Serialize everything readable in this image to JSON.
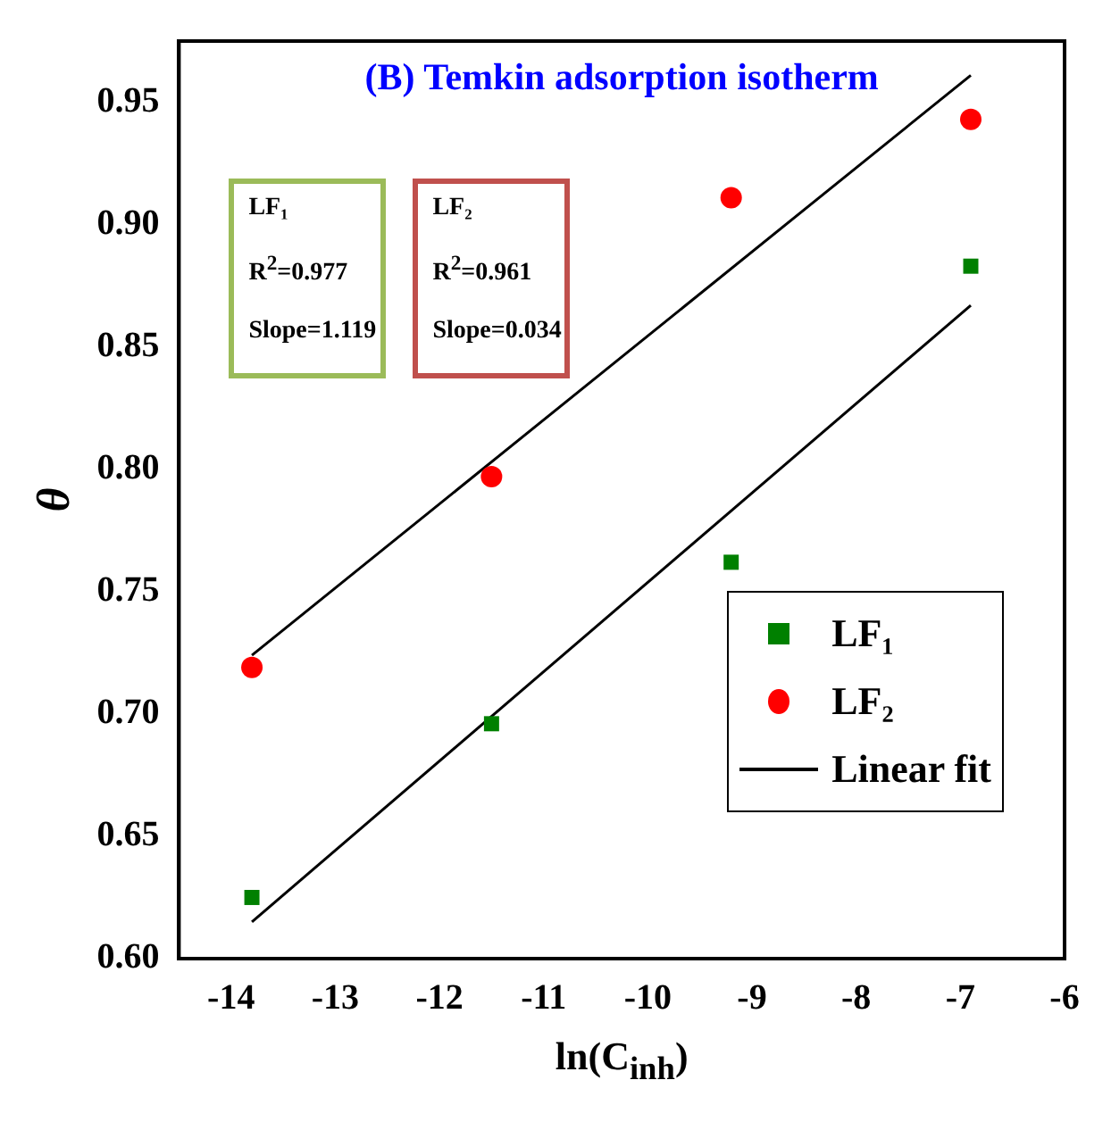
{
  "chart_data": {
    "type": "scatter",
    "title": "(B) Temkin adsorption isotherm",
    "xlabel": "ln(C$_{inh}$)",
    "ylabel": "θ",
    "xlim": [
      -14.5,
      -6
    ],
    "xticks": [
      -14,
      -13,
      -12,
      -11,
      -10,
      -9,
      -8,
      -7,
      -6
    ],
    "ylim": [
      0.6,
      0.975
    ],
    "yticks": [
      {
        "value": 0.6,
        "label": "0.60"
      },
      0.65,
      {
        "value": 0.7,
        "label": "0.70"
      },
      0.75,
      {
        "value": 0.8,
        "label": "0.80"
      },
      0.85,
      {
        "value": 0.9,
        "label": "0.90"
      },
      0.95
    ],
    "grid": false,
    "legend": "bottom right",
    "series": [
      {
        "name": "LF₁",
        "marker": "square",
        "color": "#008000",
        "x": [
          -13.8,
          -11.5,
          -9.2,
          -6.9
        ],
        "values": [
          0.625,
          0.696,
          0.762,
          0.883
        ]
      },
      {
        "name": "LF₂",
        "marker": "circle",
        "color": "#ff0000",
        "x": [
          -13.8,
          -11.5,
          -9.2,
          -6.9
        ],
        "values": [
          0.719,
          0.797,
          0.911,
          0.943
        ]
      },
      {
        "name": "Linear fit",
        "type": "line",
        "marker": "none",
        "color": "#000000",
        "x": [
          -13.8,
          -6.9
        ],
        "values": [
          0.615,
          0.867
        ]
      },
      {
        "type": "line",
        "marker": "none",
        "color": "#000000",
        "x": [
          -13.8,
          -6.9
        ],
        "values": [
          0.724,
          0.961
        ]
      }
    ],
    "annotations": [
      "LF₁",
      "R$^{2}$=0.977",
      "Slope=1.119",
      "LF₂",
      "R$^{2}$=0.961",
      "Slope=0.034"
    ]
  }
}
